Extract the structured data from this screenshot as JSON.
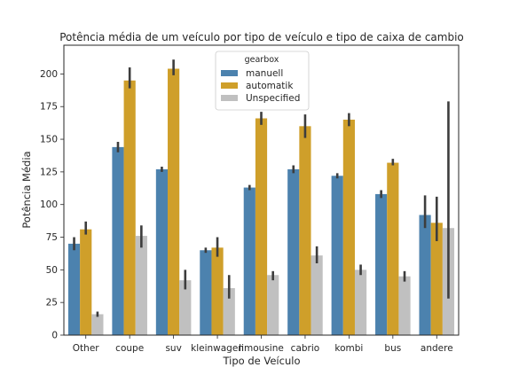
{
  "chart_data": {
    "type": "bar",
    "title": "Potência média de um veículo por tipo de veículo e tipo de caixa de cambio",
    "xlabel": "Tipo de Veículo",
    "ylabel": "Potência Média",
    "ylim": [
      0,
      222
    ],
    "yticks": [
      0,
      25,
      50,
      75,
      100,
      125,
      150,
      175,
      200
    ],
    "categories": [
      "Other",
      "coupe",
      "suv",
      "kleinwagen",
      "limousine",
      "cabrio",
      "kombi",
      "bus",
      "andere"
    ],
    "legend": {
      "title": "gearbox",
      "placement": "top-center"
    },
    "grid": false,
    "series": [
      {
        "name": "manuell",
        "color": "#4c82ae",
        "values": [
          70,
          144,
          127,
          65,
          113,
          127,
          122,
          108,
          92
        ],
        "err_low": [
          65,
          140,
          125,
          63,
          111,
          124,
          120,
          105,
          82
        ],
        "err_high": [
          75,
          148,
          129,
          67,
          115,
          130,
          124,
          111,
          107
        ]
      },
      {
        "name": "automatik",
        "color": "#cf9f2a",
        "values": [
          81,
          195,
          204,
          67,
          166,
          160,
          165,
          132,
          86
        ],
        "err_low": [
          77,
          189,
          199,
          60,
          161,
          151,
          160,
          130,
          72
        ],
        "err_high": [
          87,
          205,
          211,
          75,
          171,
          169,
          170,
          135,
          106
        ]
      },
      {
        "name": "Unspecified",
        "color": "#c0c0c0",
        "values": [
          16,
          76,
          42,
          36,
          46,
          61,
          50,
          45,
          82
        ],
        "err_low": [
          14,
          67,
          35,
          28,
          42,
          55,
          46,
          41,
          28
        ],
        "err_high": [
          18,
          84,
          50,
          46,
          49,
          68,
          54,
          49,
          179
        ]
      }
    ]
  }
}
